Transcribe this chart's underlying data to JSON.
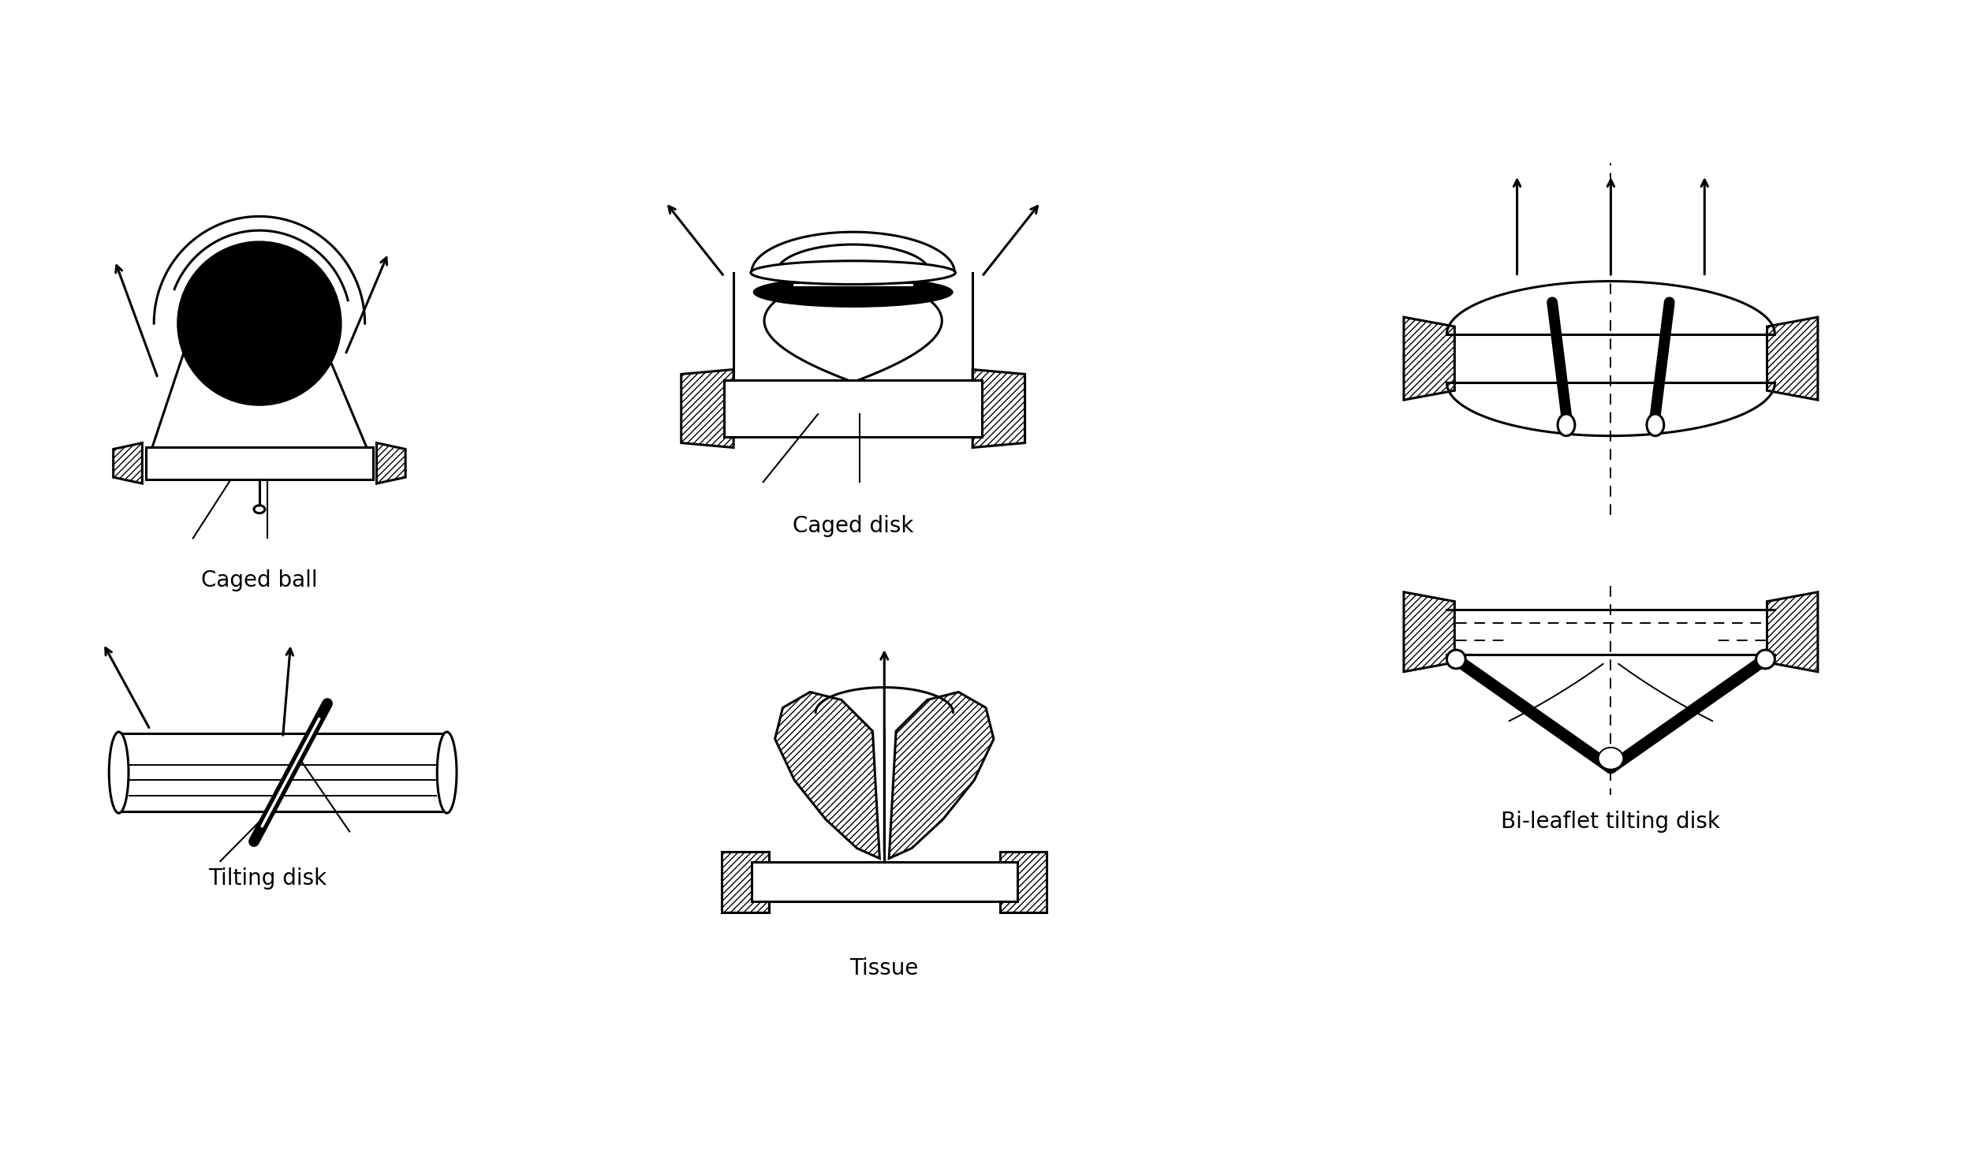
{
  "background_color": "#ffffff",
  "labels": {
    "caged_ball": "Caged ball",
    "caged_disk": "Caged disk",
    "tilting_disk": "Tilting disk",
    "tissue": "Tissue",
    "bileaflet": "Bi-leaflet tilting disk"
  },
  "label_fontsize": 20,
  "line_color": "#000000",
  "fill_black": "#000000",
  "lw": 2.2,
  "lw_tk": 8.0,
  "lw_thin": 1.4
}
